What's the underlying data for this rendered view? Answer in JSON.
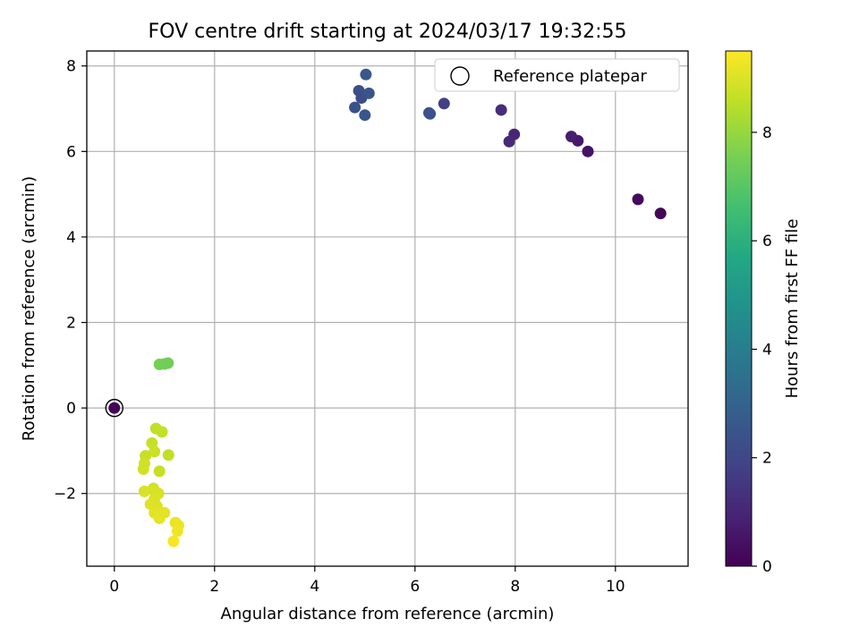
{
  "chart_data": {
    "type": "scatter",
    "title": "FOV centre drift starting at 2024/03/17 19:32:55",
    "xlabel": "Angular distance from reference (arcmin)",
    "ylabel": "Rotation from reference (arcmin)",
    "colorbar_label": "Hours from first FF file",
    "xlim": [
      -0.55,
      11.45
    ],
    "ylim": [
      -3.7,
      8.35
    ],
    "clim": [
      0,
      9.5
    ],
    "x_ticks": [
      0,
      2,
      4,
      6,
      8,
      10
    ],
    "y_ticks": [
      -2,
      0,
      2,
      4,
      6,
      8
    ],
    "colorbar_ticks": [
      0,
      2,
      4,
      6,
      8
    ],
    "x_tick_labels": [
      "0",
      "2",
      "4",
      "6",
      "8",
      "10"
    ],
    "y_tick_labels": [
      "−2",
      "0",
      "2",
      "4",
      "6",
      "8"
    ],
    "colorbar_tick_labels": [
      "0",
      "2",
      "4",
      "6",
      "8"
    ],
    "grid": true,
    "legend": {
      "position": "top-right",
      "entries": [
        "Reference platepar"
      ]
    },
    "colormap": "viridis",
    "reference_point": {
      "x": 0,
      "y": 0,
      "hours": 0.1
    },
    "points": [
      {
        "x": 0.0,
        "y": 0.0,
        "hours": 0.1
      },
      {
        "x": 10.9,
        "y": 4.55,
        "hours": 0.1
      },
      {
        "x": 10.45,
        "y": 4.88,
        "hours": 0.25
      },
      {
        "x": 9.45,
        "y": 6.0,
        "hours": 0.45
      },
      {
        "x": 9.25,
        "y": 6.25,
        "hours": 0.6
      },
      {
        "x": 9.12,
        "y": 6.35,
        "hours": 0.75
      },
      {
        "x": 7.98,
        "y": 6.4,
        "hours": 1.0
      },
      {
        "x": 7.88,
        "y": 6.23,
        "hours": 1.1
      },
      {
        "x": 7.72,
        "y": 6.97,
        "hours": 1.2
      },
      {
        "x": 6.58,
        "y": 7.12,
        "hours": 1.8
      },
      {
        "x": 6.3,
        "y": 6.88,
        "hours": 2.5
      },
      {
        "x": 6.28,
        "y": 6.9,
        "hours": 2.4
      },
      {
        "x": 5.02,
        "y": 7.8,
        "hours": 2.6
      },
      {
        "x": 4.88,
        "y": 7.42,
        "hours": 2.3
      },
      {
        "x": 4.93,
        "y": 7.25,
        "hours": 2.2
      },
      {
        "x": 5.08,
        "y": 7.36,
        "hours": 2.45
      },
      {
        "x": 4.8,
        "y": 7.03,
        "hours": 2.35
      },
      {
        "x": 5.0,
        "y": 6.85,
        "hours": 2.55
      },
      {
        "x": 0.9,
        "y": 1.02,
        "hours": 7.5
      },
      {
        "x": 1.0,
        "y": 1.03,
        "hours": 7.45
      },
      {
        "x": 1.07,
        "y": 1.05,
        "hours": 7.4
      },
      {
        "x": 0.83,
        "y": -0.48,
        "hours": 8.6
      },
      {
        "x": 0.95,
        "y": -0.56,
        "hours": 8.65
      },
      {
        "x": 0.75,
        "y": -0.82,
        "hours": 8.7
      },
      {
        "x": 0.8,
        "y": -1.02,
        "hours": 8.75
      },
      {
        "x": 1.08,
        "y": -1.1,
        "hours": 8.6
      },
      {
        "x": 0.62,
        "y": -1.12,
        "hours": 8.7
      },
      {
        "x": 0.6,
        "y": -1.3,
        "hours": 8.8
      },
      {
        "x": 0.58,
        "y": -1.43,
        "hours": 8.85
      },
      {
        "x": 0.9,
        "y": -1.48,
        "hours": 8.7
      },
      {
        "x": 0.78,
        "y": -1.88,
        "hours": 8.9
      },
      {
        "x": 0.6,
        "y": -1.95,
        "hours": 8.95
      },
      {
        "x": 0.88,
        "y": -2.0,
        "hours": 8.9
      },
      {
        "x": 0.8,
        "y": -2.12,
        "hours": 9.0
      },
      {
        "x": 0.72,
        "y": -2.25,
        "hours": 9.05
      },
      {
        "x": 0.85,
        "y": -2.3,
        "hours": 9.0
      },
      {
        "x": 0.8,
        "y": -2.45,
        "hours": 9.1
      },
      {
        "x": 1.0,
        "y": -2.45,
        "hours": 9.1
      },
      {
        "x": 0.9,
        "y": -2.58,
        "hours": 9.15
      },
      {
        "x": 1.22,
        "y": -2.68,
        "hours": 9.2
      },
      {
        "x": 1.28,
        "y": -2.75,
        "hours": 9.25
      },
      {
        "x": 1.26,
        "y": -2.88,
        "hours": 9.3
      },
      {
        "x": 1.18,
        "y": -3.12,
        "hours": 9.4
      }
    ]
  }
}
